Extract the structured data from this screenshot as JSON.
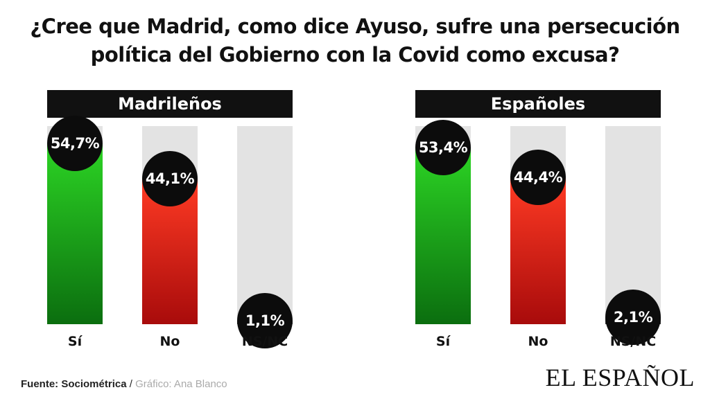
{
  "title_lines": [
    "¿Cree que Madrid, como dice Ayuso, sufre una persecución",
    "política del Gobierno con la Covid como excusa?"
  ],
  "chart_data": [
    {
      "type": "bar",
      "title": "Madrileños",
      "categories": [
        "Sí",
        "No",
        "NS/NC"
      ],
      "values": [
        54.7,
        44.1,
        1.1
      ],
      "value_labels": [
        "54,7%",
        "44,1%",
        "1,1%"
      ],
      "ylim": [
        0,
        60
      ],
      "colors": [
        "#1ea81a",
        "#e0231a",
        "#3a3a3a"
      ]
    },
    {
      "type": "bar",
      "title": "Españoles",
      "categories": [
        "Sí",
        "No",
        "NS/NC"
      ],
      "values": [
        53.4,
        44.4,
        2.1
      ],
      "value_labels": [
        "53,4%",
        "44,4%",
        "2,1%"
      ],
      "ylim": [
        0,
        60
      ],
      "colors": [
        "#1ea81a",
        "#e0231a",
        "#3a3a3a"
      ]
    }
  ],
  "footer": {
    "source_label": "Fuente:",
    "source_name": "Sociométrica",
    "separator": "/",
    "credit": "Gráfico: Ana Blanco"
  },
  "brand": {
    "logo_text": "EL ESPAÑOL"
  }
}
